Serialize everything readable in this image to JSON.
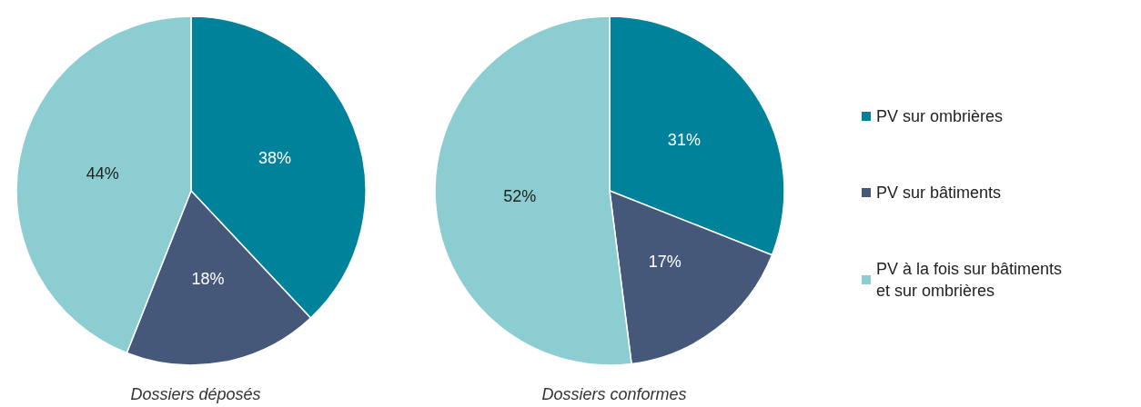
{
  "chart_data": [
    {
      "type": "pie",
      "title": "Dossiers déposés",
      "categories": [
        null,
        null,
        null
      ],
      "values": [
        38,
        18,
        44
      ],
      "value_labels": [
        "38%",
        "18%",
        "44%"
      ],
      "colors": [
        "#00839a",
        "#455879",
        "#8ccdd1"
      ],
      "legend": false
    },
    {
      "type": "pie",
      "title": "Dossiers conformes",
      "categories": [
        "PV sur ombrières",
        "PV sur bâtiments",
        "PV à la fois sur bâtiments et sur ombrières"
      ],
      "values": [
        31,
        17,
        52
      ],
      "value_labels": [
        "31%",
        "17%",
        "52%"
      ],
      "colors": [
        "#00839a",
        "#455879",
        "#8ccdd1"
      ],
      "legend": "right"
    }
  ]
}
